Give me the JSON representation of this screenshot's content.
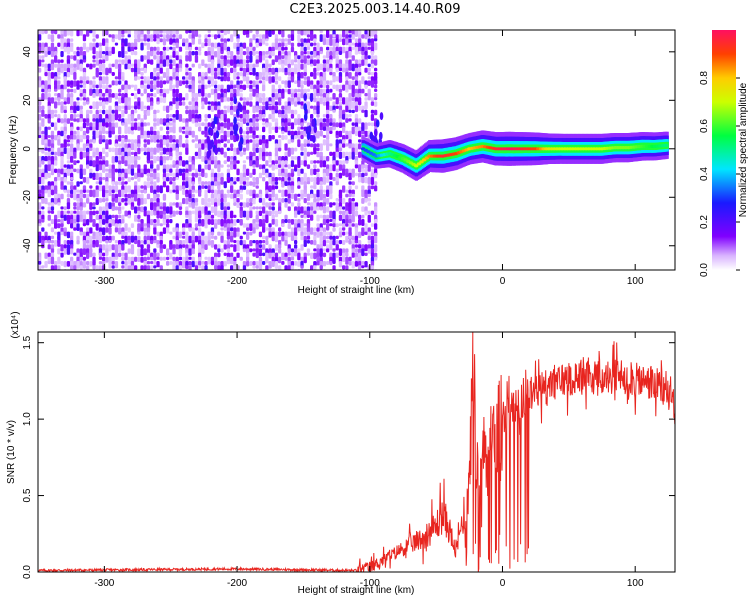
{
  "title": "C2E3.2025.003.14.40.R09",
  "chart_data": [
    {
      "type": "heatmap",
      "xlabel": "Height of straight line (km)",
      "ylabel": "Frequency (Hz)",
      "xlim": [
        -350,
        130
      ],
      "ylim": [
        -50,
        49
      ],
      "xticks": [
        -300,
        -200,
        -100,
        0,
        100
      ],
      "yticks": [
        -40,
        -20,
        0,
        20,
        40
      ],
      "colorbar": {
        "label": "Normalized spectral amplitude",
        "range": [
          0.0,
          1.0
        ],
        "ticks": [
          "0.0",
          "0.2",
          "0.4",
          "0.6",
          "0.8"
        ],
        "colormap": "rainbow"
      },
      "noise_region_x": [
        -350,
        -95
      ],
      "signal_track": {
        "x": [
          -105,
          -95,
          -85,
          -75,
          -65,
          -55,
          -45,
          -35,
          -25,
          -15,
          -5,
          5,
          15,
          25,
          35,
          45,
          55,
          65,
          75,
          85,
          95,
          105,
          115,
          125
        ],
        "freq": [
          0,
          -3,
          -2,
          -4,
          -7,
          -3,
          -3,
          -2,
          0,
          1,
          0,
          0,
          0,
          0,
          0,
          0,
          0,
          0,
          0,
          0.5,
          0.5,
          1,
          1,
          1.5
        ],
        "amplitude": [
          0.3,
          0.35,
          0.5,
          0.6,
          0.7,
          0.85,
          0.95,
          0.9,
          0.8,
          0.85,
          0.95,
          1.0,
          0.95,
          0.9,
          0.75,
          0.7,
          0.7,
          0.7,
          0.7,
          0.65,
          0.65,
          0.6,
          0.55,
          0.5
        ]
      }
    },
    {
      "type": "line",
      "xlabel": "Height of straight line (km)",
      "ylabel": "SNR (10 * v/v)",
      "scale_label": "(x10⁴)",
      "xlim": [
        -350,
        130
      ],
      "ylim": [
        0,
        1.57
      ],
      "xticks": [
        -300,
        -200,
        -100,
        0,
        100
      ],
      "yticks": [
        "0.0",
        "0.5",
        "1.0",
        "1.5"
      ],
      "series": [
        {
          "color": "#e8251f",
          "x": [
            -350,
            -200,
            -110,
            -100,
            -90,
            -80,
            -70,
            -60,
            -50,
            -45,
            -40,
            -35,
            -30,
            -25,
            -22,
            -20,
            -15,
            -10,
            -5,
            0,
            10,
            20,
            30,
            40,
            50,
            60,
            70,
            80,
            90,
            100,
            110,
            120,
            130
          ],
          "y": [
            0.01,
            0.02,
            0.01,
            0.03,
            0.08,
            0.13,
            0.18,
            0.22,
            0.3,
            0.38,
            0.28,
            0.12,
            0.35,
            0.55,
            1.57,
            0.6,
            0.75,
            0.85,
            0.95,
            1.0,
            1.08,
            1.15,
            1.2,
            1.24,
            1.27,
            1.28,
            1.27,
            1.27,
            1.28,
            1.25,
            1.24,
            1.2,
            1.12
          ]
        }
      ]
    }
  ]
}
